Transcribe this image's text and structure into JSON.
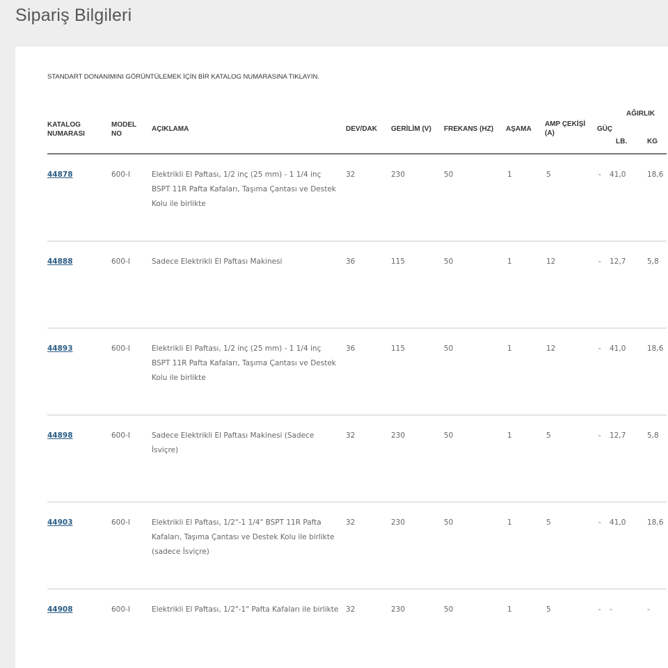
{
  "page": {
    "title": "Sipariş Bilgileri",
    "instruction": "STANDART DONANIMINI GÖRÜNTÜLEMEK İÇİN BİR KATALOG NUMARASINA TIKLAYIN."
  },
  "table": {
    "headers": {
      "catalog": "KATALOG NUMARASI",
      "model": "MODEL NO",
      "desc": "AÇIKLAMA",
      "rpm": "DEV/DAK",
      "voltage": "GERİLİM (V)",
      "freq": "FREKANS (HZ)",
      "phase": "AŞAMA",
      "amp": "AMP ÇEKİŞİ (A)",
      "power": "GÜÇ",
      "weight": "AĞIRLIK",
      "lb": "LB.",
      "kg": "KG"
    },
    "rows": [
      {
        "catalog": "44878",
        "model": "600-I",
        "desc": "Elektrikli El Paftası, 1/2 inç (25 mm) - 1 1/4 inç BSPT 11R Pafta Kafaları, Taşıma Çantası ve Destek Kolu ile birlikte",
        "rpm": "32",
        "voltage": "230",
        "freq": "50",
        "phase": "1",
        "amp": "5",
        "power": "-",
        "lb": "41,0",
        "kg": "18,6"
      },
      {
        "catalog": "44888",
        "model": "600-I",
        "desc": "Sadece Elektrikli El Paftası Makinesi",
        "rpm": "36",
        "voltage": "115",
        "freq": "50",
        "phase": "1",
        "amp": "12",
        "power": "-",
        "lb": "12,7",
        "kg": "5,8"
      },
      {
        "catalog": "44893",
        "model": "600-I",
        "desc": "Elektrikli El Paftası, 1/2 inç (25 mm) - 1 1/4 inç BSPT 11R Pafta Kafaları, Taşıma Çantası ve Destek Kolu ile birlikte",
        "rpm": "36",
        "voltage": "115",
        "freq": "50",
        "phase": "1",
        "amp": "12",
        "power": "-",
        "lb": "41,0",
        "kg": "18,6"
      },
      {
        "catalog": "44898",
        "model": "600-I",
        "desc": "Sadece Elektrikli El Paftası Makinesi (Sadece İsviçre)",
        "rpm": "32",
        "voltage": "230",
        "freq": "50",
        "phase": "1",
        "amp": "5",
        "power": "-",
        "lb": "12,7",
        "kg": "5,8"
      },
      {
        "catalog": "44903",
        "model": "600-I",
        "desc": "Elektrikli El Paftası, 1/2\"-1 1/4\" BSPT 11R Pafta Kafaları, Taşıma Çantası ve Destek Kolu ile birlikte (sadece İsviçre)",
        "rpm": "32",
        "voltage": "230",
        "freq": "50",
        "phase": "1",
        "amp": "5",
        "power": "-",
        "lb": "41,0",
        "kg": "18,6"
      },
      {
        "catalog": "44908",
        "model": "600-I",
        "desc": "Elektrikli El Paftası, 1/2\"-1\" Pafta Kafaları ile birlikte",
        "rpm": "32",
        "voltage": "230",
        "freq": "50",
        "phase": "1",
        "amp": "5",
        "power": "-",
        "lb": "-",
        "kg": "-"
      }
    ]
  }
}
